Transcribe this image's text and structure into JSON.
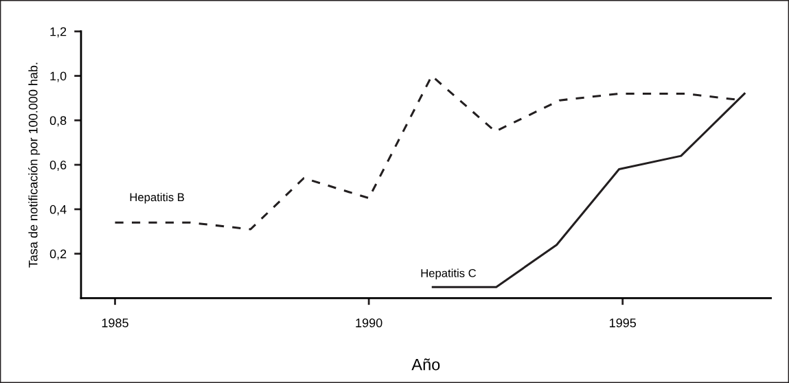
{
  "chart_data": {
    "type": "line",
    "xlabel": "Año",
    "ylabel": "Tasa de notificación por 100.000 hab.",
    "series": [
      {
        "name": "Hepatitis B",
        "color": "#231f20",
        "line_style": "dashed",
        "x": [
          1985.0,
          1986.48,
          1987.67,
          1988.72,
          1990.0,
          1991.24,
          1992.49,
          1993.76,
          1994.93,
          1996.23,
          1997.36
        ],
        "values": [
          0.34,
          0.34,
          0.31,
          0.54,
          0.45,
          1.0,
          0.75,
          0.89,
          0.92,
          0.92,
          0.89
        ]
      },
      {
        "name": "Hepatitis C",
        "color": "#231f20",
        "line_style": "solid",
        "x": [
          1991.26,
          1992.51,
          1993.7,
          1994.93,
          1996.15,
          1997.4
        ],
        "values": [
          0.05,
          0.05,
          0.24,
          0.58,
          0.64,
          0.92
        ]
      }
    ],
    "xlim": [
      1984.33,
      1997.92
    ],
    "xticks": [
      1985,
      1990,
      1995
    ],
    "ylim": [
      0,
      1.2
    ],
    "yticks": [
      {
        "value": 0.2,
        "label": "0,2"
      },
      {
        "value": 0.4,
        "label": "0,4"
      },
      {
        "value": 0.6,
        "label": "0,6"
      },
      {
        "value": 0.8,
        "label": "0,8"
      },
      {
        "value": 1.0,
        "label": "1,0"
      },
      {
        "value": 1.2,
        "label": "1,2"
      }
    ],
    "grid": false,
    "legend": false,
    "marker": "none"
  }
}
